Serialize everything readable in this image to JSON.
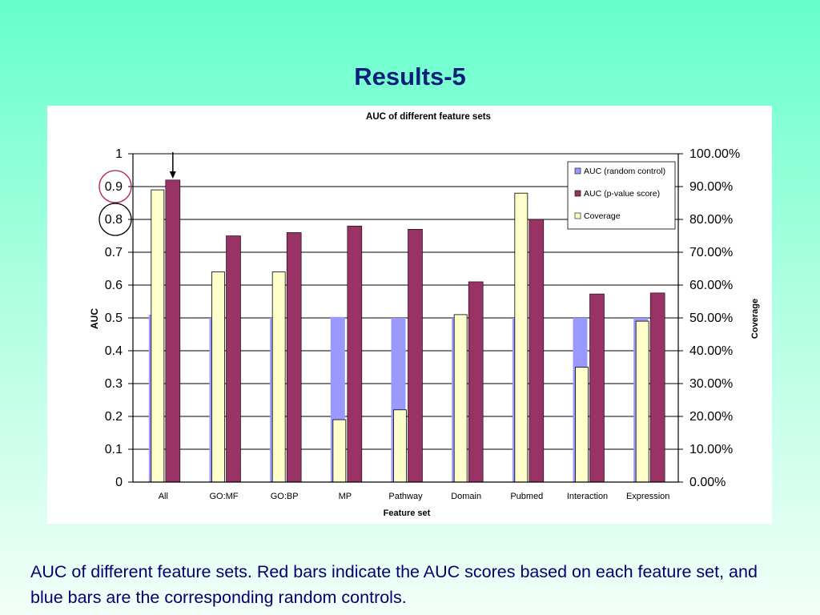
{
  "slide": {
    "title": "Results-5",
    "caption": "AUC of different feature sets. Red bars indicate the AUC scores based on each feature set, and blue bars are the corresponding random controls."
  },
  "chart_data": {
    "type": "bar",
    "title": "AUC of different feature sets",
    "xlabel": "Feature set",
    "ylabel": "AUC",
    "y2label": "Coverage",
    "ylim": [
      0,
      1
    ],
    "y2lim": [
      0,
      1
    ],
    "yticks": [
      "0",
      "0.1",
      "0.2",
      "0.3",
      "0.4",
      "0.5",
      "0.6",
      "0.7",
      "0.8",
      "0.9",
      "1"
    ],
    "y2ticks": [
      "0.00%",
      "10.00%",
      "20.00%",
      "30.00%",
      "40.00%",
      "50.00%",
      "60.00%",
      "70.00%",
      "80.00%",
      "90.00%",
      "100.00%"
    ],
    "grid": true,
    "legend_position": "top-right",
    "categories": [
      "All",
      "GO:MF",
      "GO:BP",
      "MP",
      "Pathway",
      "Domain",
      "Pubmed",
      "Interaction",
      "Expression"
    ],
    "series": [
      {
        "name": "AUC (random control)",
        "axis": "left",
        "color": "#9999ff",
        "values": [
          0.51,
          0.5,
          0.5,
          0.503,
          0.5,
          0.5,
          0.5,
          0.5,
          0.5
        ]
      },
      {
        "name": "AUC (p-value score)",
        "axis": "left",
        "color": "#993366",
        "values": [
          0.92,
          0.75,
          0.76,
          0.78,
          0.77,
          0.61,
          0.8,
          0.573,
          0.576
        ]
      },
      {
        "name": "Coverage",
        "axis": "right",
        "color": "#ffffcc",
        "values": [
          0.89,
          0.64,
          0.64,
          0.19,
          0.22,
          0.51,
          0.88,
          0.35,
          0.49
        ]
      }
    ],
    "annotations": {
      "arrow_category": "All",
      "red_circle_tick": "0.9",
      "black_circle_tick": "0.8",
      "red_circle_color": "#b02040",
      "black_circle_color": "#000000"
    }
  }
}
